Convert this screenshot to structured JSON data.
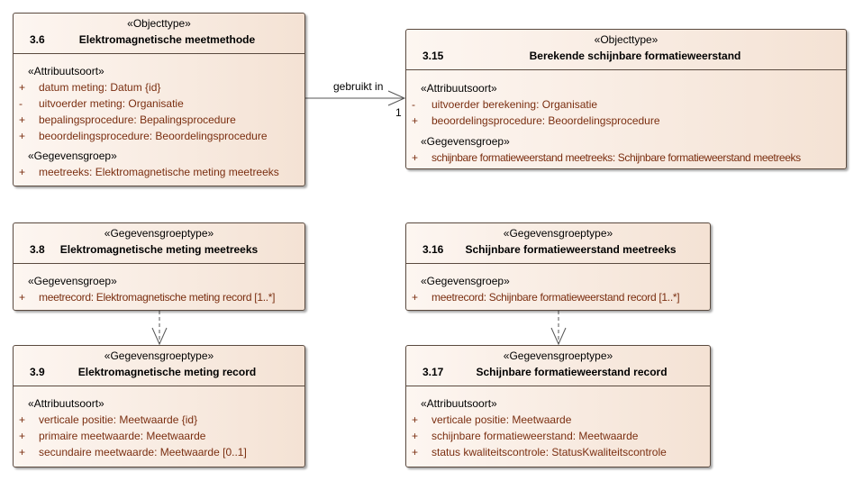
{
  "classes": {
    "c36": {
      "stereotype": "«Objecttype»",
      "number": "3.6",
      "title": "Elektromagnetische meetmethode",
      "sections": [
        {
          "name": "«Attribuutsoort»",
          "items": [
            {
              "vis": "+",
              "text": "datum meting: Datum {id}"
            },
            {
              "vis": "-",
              "text": "uitvoerder meting: Organisatie"
            },
            {
              "vis": "+",
              "text": "bepalingsprocedure: Bepalingsprocedure"
            },
            {
              "vis": "+",
              "text": "beoordelingsprocedure: Beoordelingsprocedure"
            }
          ]
        },
        {
          "name": "«Gegevensgroep»",
          "items": [
            {
              "vis": "+",
              "text": "meetreeks: Elektromagnetische meting meetreeks"
            }
          ]
        }
      ]
    },
    "c315": {
      "stereotype": "«Objecttype»",
      "number": "3.15",
      "title": "Berekende schijnbare formatieweerstand",
      "sections": [
        {
          "name": "«Attribuutsoort»",
          "items": [
            {
              "vis": "-",
              "text": "uitvoerder berekening: Organisatie"
            },
            {
              "vis": "+",
              "text": "beoordelingsprocedure: Beoordelingsprocedure"
            }
          ]
        },
        {
          "name": "«Gegevensgroep»",
          "items": [
            {
              "vis": "+",
              "text": "schijnbare formatieweerstand meetreeks: Schijnbare formatieweerstand meetreeks"
            }
          ]
        }
      ]
    },
    "c38": {
      "stereotype": "«Gegevensgroeptype»",
      "number": "3.8",
      "title": "Elektromagnetische meting meetreeks",
      "sections": [
        {
          "name": "«Gegevensgroep»",
          "items": [
            {
              "vis": "+",
              "text": "meetrecord: Elektromagnetische meting record [1..*]"
            }
          ]
        }
      ]
    },
    "c316": {
      "stereotype": "«Gegevensgroeptype»",
      "number": "3.16",
      "title": "Schijnbare formatieweerstand meetreeks",
      "sections": [
        {
          "name": "«Gegevensgroep»",
          "items": [
            {
              "vis": "+",
              "text": "meetrecord: Schijnbare formatieweerstand record [1..*]"
            }
          ]
        }
      ]
    },
    "c39": {
      "stereotype": "«Gegevensgroeptype»",
      "number": "3.9",
      "title": "Elektromagnetische meting record",
      "sections": [
        {
          "name": "«Attribuutsoort»",
          "items": [
            {
              "vis": "+",
              "text": "verticale positie: Meetwaarde {id}"
            },
            {
              "vis": "+",
              "text": "primaire meetwaarde: Meetwaarde"
            },
            {
              "vis": "+",
              "text": "secundaire meetwaarde: Meetwaarde [0..1]"
            }
          ]
        }
      ]
    },
    "c317": {
      "stereotype": "«Gegevensgroeptype»",
      "number": "3.17",
      "title": "Schijnbare formatieweerstand record",
      "sections": [
        {
          "name": "«Attribuutsoort»",
          "items": [
            {
              "vis": "+",
              "text": "verticale positie: Meetwaarde"
            },
            {
              "vis": "+",
              "text": "schijnbare formatieweerstand: Meetwaarde"
            },
            {
              "vis": "+",
              "text": "status kwaliteitscontrole: StatusKwaliteitscontrole"
            }
          ]
        }
      ]
    }
  },
  "association": {
    "label": "gebruikt in",
    "multiplicity": "1"
  }
}
